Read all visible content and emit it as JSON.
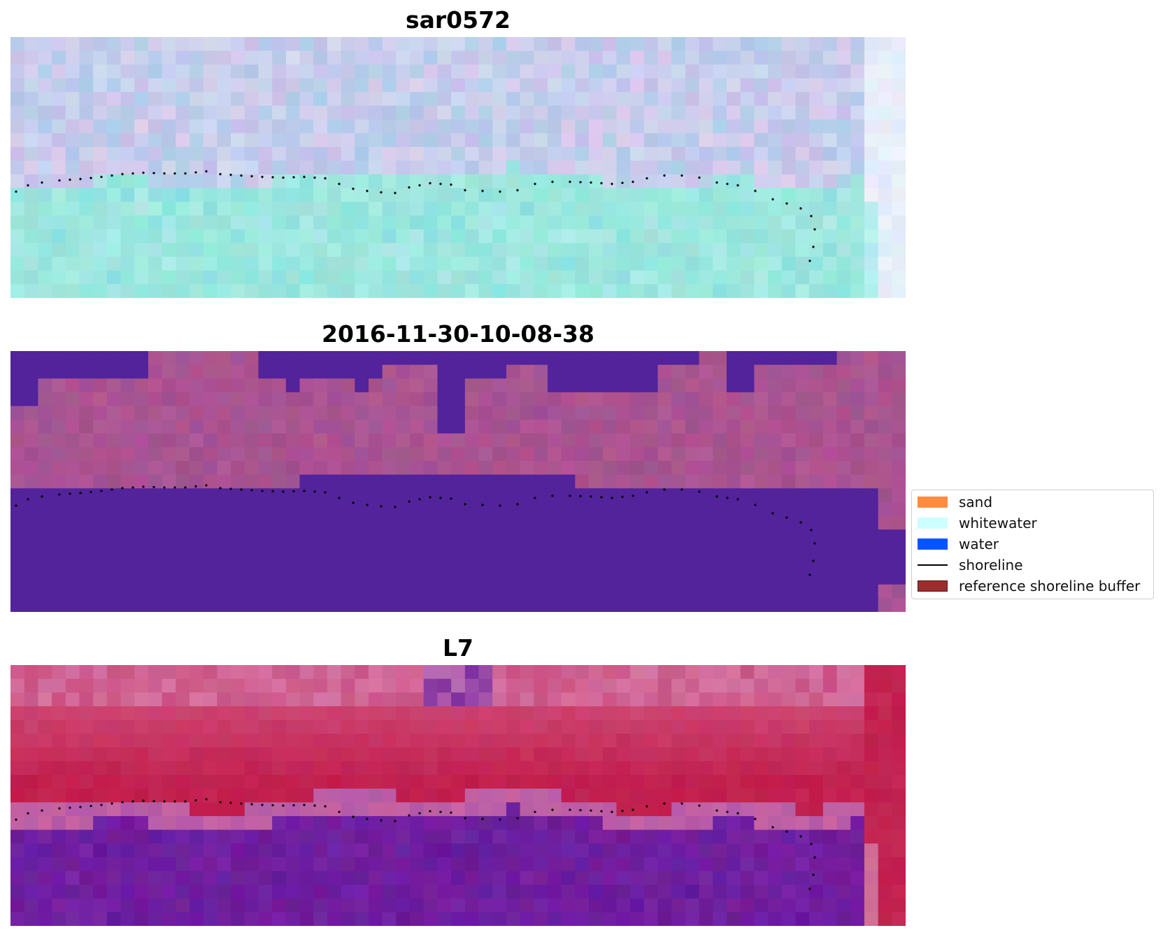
{
  "panels": [
    {
      "title": "sar0572",
      "palette": "sar"
    },
    {
      "title": "2016-11-30-10-08-38",
      "palette": "classified"
    },
    {
      "title": "L7",
      "palette": "l7"
    }
  ],
  "legend": {
    "items": [
      {
        "label": "sand",
        "kind": "patch",
        "color": "#ff8c3f",
        "edge": "#ff8c3f"
      },
      {
        "label": "whitewater",
        "kind": "patch",
        "color": "#ccffff",
        "edge": "#ccffff"
      },
      {
        "label": "water",
        "kind": "patch",
        "color": "#0055ff",
        "edge": "#0055ff"
      },
      {
        "label": "shoreline",
        "kind": "line",
        "color": "#000000"
      },
      {
        "label": "reference shoreline buffer",
        "kind": "patch",
        "color": "#9b2f2f",
        "edge": "#5a1212"
      }
    ]
  },
  "colors": {
    "water_class": "#52239a",
    "sand_mix": "#a5528f",
    "l7_land": "#c01c4b",
    "l7_water": "#6a1a99",
    "sar_land": "#c5c8ea",
    "sar_water": "#98e6dc"
  }
}
